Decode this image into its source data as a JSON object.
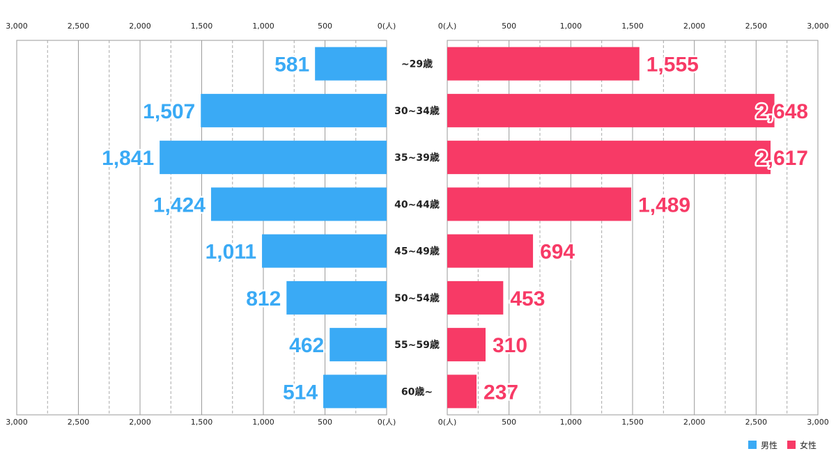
{
  "chart_data": {
    "type": "bar",
    "orientation": "horizontal-population-pyramid",
    "categories": [
      "~29歳",
      "30~34歳",
      "35~39歳",
      "40~44歳",
      "45~49歳",
      "50~54歳",
      "55~59歳",
      "60歳~"
    ],
    "series": [
      {
        "name": "男性",
        "color": "#3aaaf5",
        "values": [
          581,
          1507,
          1841,
          1424,
          1011,
          812,
          462,
          514
        ],
        "labels": [
          "581",
          "1,507",
          "1,841",
          "1,424",
          "1,011",
          "812",
          "462",
          "514"
        ]
      },
      {
        "name": "女性",
        "color": "#f73a66",
        "values": [
          1555,
          2648,
          2617,
          1489,
          694,
          453,
          310,
          237
        ],
        "labels": [
          "1,555",
          "2,648",
          "2,617",
          "1,489",
          "694",
          "453",
          "310",
          "237"
        ]
      }
    ],
    "xlim": [
      0,
      3000
    ],
    "left_ticks": [
      "3,000",
      "2,500",
      "2,000",
      "1,500",
      "1,000",
      "500",
      "0(人)"
    ],
    "right_ticks": [
      "0(人)",
      "500",
      "1,000",
      "1,500",
      "2,000",
      "2,500",
      "3,000"
    ],
    "grid": true,
    "legend": {
      "position": "bottom-right",
      "items": [
        "男性",
        "女性"
      ]
    }
  }
}
